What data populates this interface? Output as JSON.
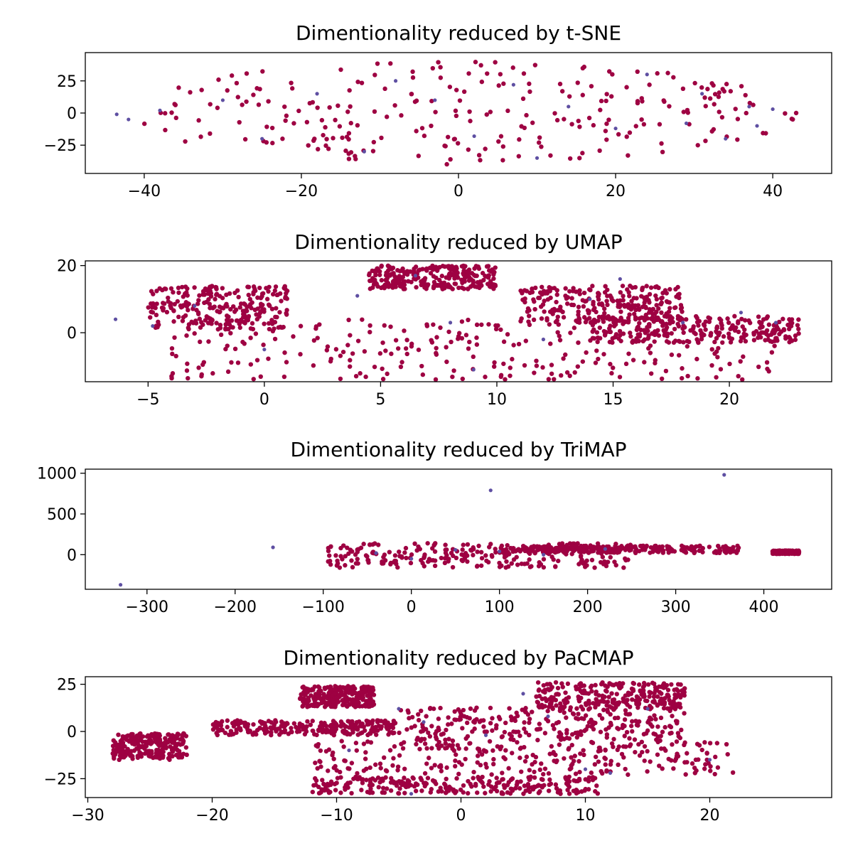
{
  "colors": {
    "primary": "#9e0142",
    "secondary": "#5e4fa2"
  },
  "chart_data": [
    {
      "type": "scatter",
      "title": "Dimentionality reduced by t-SNE",
      "xlabel": "",
      "ylabel": "",
      "xlim": [
        -47.5,
        47.5
      ],
      "ylim": [
        -47,
        47
      ],
      "xticks": [
        -40,
        -20,
        0,
        20,
        40
      ],
      "xtick_labels": [
        "−40",
        "−20",
        "0",
        "20",
        "40"
      ],
      "yticks": [
        25,
        0,
        -25
      ],
      "ytick_labels": [
        "25",
        "0",
        "−25"
      ],
      "grid": false,
      "clusters": [
        {
          "cx": 0,
          "cy": 0,
          "rx": 43,
          "ry": 40,
          "value_range_note": "dense ellipse"
        }
      ],
      "highlight_points": [
        [
          -43.5,
          -1
        ],
        [
          -42,
          -5
        ],
        [
          -38,
          2
        ],
        [
          -30,
          10
        ],
        [
          -25,
          -20
        ],
        [
          -18,
          15
        ],
        [
          -12,
          -30
        ],
        [
          -8,
          25
        ],
        [
          -3,
          10
        ],
        [
          2,
          -18
        ],
        [
          7,
          22
        ],
        [
          10,
          -35
        ],
        [
          14,
          5
        ],
        [
          20,
          -12
        ],
        [
          24,
          30
        ],
        [
          29,
          -8
        ],
        [
          31,
          15
        ],
        [
          34,
          -20
        ],
        [
          37,
          5
        ],
        [
          38,
          -10
        ],
        [
          40,
          3
        ]
      ]
    },
    {
      "type": "scatter",
      "title": "Dimentionality reduced by UMAP",
      "xlabel": "",
      "ylabel": "",
      "xlim": [
        -7.7,
        24.4
      ],
      "ylim": [
        -14.6,
        21.4
      ],
      "xticks": [
        -5,
        0,
        5,
        10,
        15,
        20
      ],
      "xtick_labels": [
        "−5",
        "0",
        "5",
        "10",
        "15",
        "20"
      ],
      "yticks": [
        20,
        0
      ],
      "ytick_labels": [
        "20",
        "0"
      ],
      "grid": false,
      "clusters": [
        {
          "x": [
            -5,
            1
          ],
          "y": [
            1,
            14
          ]
        },
        {
          "x": [
            4.5,
            10
          ],
          "y": [
            13,
            20
          ]
        },
        {
          "x": [
            11,
            18
          ],
          "y": [
            3,
            14
          ]
        },
        {
          "x": [
            14,
            23
          ],
          "y": [
            -3,
            5
          ]
        },
        {
          "x": [
            -4,
            22
          ],
          "y": [
            -14,
            4
          ]
        }
      ],
      "highlight_points": [
        [
          -6.4,
          4
        ],
        [
          -4.8,
          2
        ],
        [
          -3,
          8
        ],
        [
          0,
          -5
        ],
        [
          4,
          11
        ],
        [
          6.5,
          17
        ],
        [
          8,
          3
        ],
        [
          9,
          -11
        ],
        [
          12,
          -2
        ],
        [
          14,
          10
        ],
        [
          15.3,
          16
        ],
        [
          18,
          3
        ],
        [
          20.5,
          6
        ],
        [
          22,
          3
        ]
      ]
    },
    {
      "type": "scatter",
      "title": "Dimentionality reduced by TriMAP",
      "xlabel": "",
      "ylabel": "",
      "xlim": [
        -370,
        477
      ],
      "ylim": [
        -425,
        1050
      ],
      "xticks": [
        -300,
        -200,
        -100,
        0,
        100,
        200,
        300,
        400
      ],
      "xtick_labels": [
        "−300",
        "−200",
        "−100",
        "0",
        "100",
        "200",
        "300",
        "400"
      ],
      "yticks": [
        1000,
        500,
        0
      ],
      "ytick_labels": [
        "1000",
        "500",
        "0"
      ],
      "grid": false,
      "clusters": [
        {
          "x": [
            -95,
            250
          ],
          "y": [
            -160,
            140
          ]
        },
        {
          "x": [
            100,
            375
          ],
          "y": [
            20,
            110
          ]
        },
        {
          "x": [
            410,
            440
          ],
          "y": [
            10,
            50
          ]
        }
      ],
      "highlight_points": [
        [
          -157,
          90
        ],
        [
          90,
          790
        ],
        [
          -40,
          20
        ],
        [
          0,
          -50
        ],
        [
          50,
          60
        ],
        [
          100,
          40
        ],
        [
          150,
          0
        ],
        [
          220,
          70
        ],
        [
          -330,
          -370
        ],
        [
          355,
          980
        ]
      ]
    },
    {
      "type": "scatter",
      "title": "Dimentionality reduced by PaCMAP",
      "xlabel": "",
      "ylabel": "",
      "xlim": [
        -30.2,
        29.8
      ],
      "ylim": [
        -35,
        29
      ],
      "xticks": [
        -30,
        -20,
        -10,
        0,
        10,
        20
      ],
      "xtick_labels": [
        "−30",
        "−20",
        "−10",
        "0",
        "10",
        "20"
      ],
      "yticks": [
        25,
        0,
        -25
      ],
      "ytick_labels": [
        "25",
        "0",
        "−25"
      ],
      "grid": false,
      "clusters": [
        {
          "x": [
            -13,
            -7
          ],
          "y": [
            13,
            24
          ]
        },
        {
          "x": [
            -20,
            -5
          ],
          "y": [
            -2,
            6
          ]
        },
        {
          "x": [
            -5,
            18
          ],
          "y": [
            -5,
            13
          ]
        },
        {
          "x": [
            -12,
            22
          ],
          "y": [
            -23,
            -5
          ]
        },
        {
          "x": [
            -12,
            11
          ],
          "y": [
            -33,
            -24
          ]
        },
        {
          "x": [
            6,
            18
          ],
          "y": [
            12,
            26
          ]
        },
        {
          "x": [
            -28,
            -22
          ],
          "y": [
            -15,
            -1
          ]
        }
      ],
      "highlight_points": [
        [
          -5,
          12
        ],
        [
          -3,
          5
        ],
        [
          2,
          -2
        ],
        [
          7,
          8
        ],
        [
          10,
          -20
        ],
        [
          12,
          -22
        ],
        [
          15,
          12
        ],
        [
          -9,
          -10
        ],
        [
          -4,
          -33
        ],
        [
          5,
          20
        ],
        [
          20,
          -15
        ]
      ]
    }
  ]
}
